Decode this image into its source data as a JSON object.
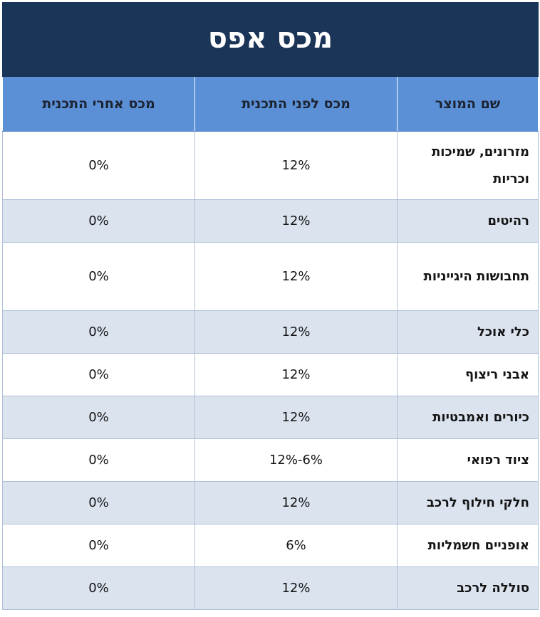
{
  "title": "מכס אפס",
  "colors": {
    "title_bg": "#1b3558",
    "header_bg": "#5b8fd6",
    "row_alt_bg": "#dbe3ef",
    "grid_line": "#aebfd8"
  },
  "headers": {
    "product_name": "שם המוצר",
    "tax_before": "מכס לפני התכנית",
    "tax_after": "מכס אחרי התכנית"
  },
  "rows": [
    {
      "name": "מזרונים, שמיכות וכריות",
      "before": "12%",
      "after": "0%"
    },
    {
      "name": "רהיטים",
      "before": "12%",
      "after": "0%"
    },
    {
      "name": "תחבושות היגייניות",
      "before": "12%",
      "after": "0%"
    },
    {
      "name": "כלי אוכל",
      "before": "12%",
      "after": "0%"
    },
    {
      "name": "אבני ריצוף",
      "before": "12%",
      "after": "0%"
    },
    {
      "name": "כיורים ואמבטיות",
      "before": "12%",
      "after": "0%"
    },
    {
      "name": "ציוד רפואי",
      "before": "12%-6%",
      "after": "0%"
    },
    {
      "name": "חלקי חילוף לרכב",
      "before": "12%",
      "after": "0%"
    },
    {
      "name": "אופניים חשמליות",
      "before": "6%",
      "after": "0%"
    },
    {
      "name": "סוללה לרכב",
      "before": "12%",
      "after": "0%"
    }
  ]
}
